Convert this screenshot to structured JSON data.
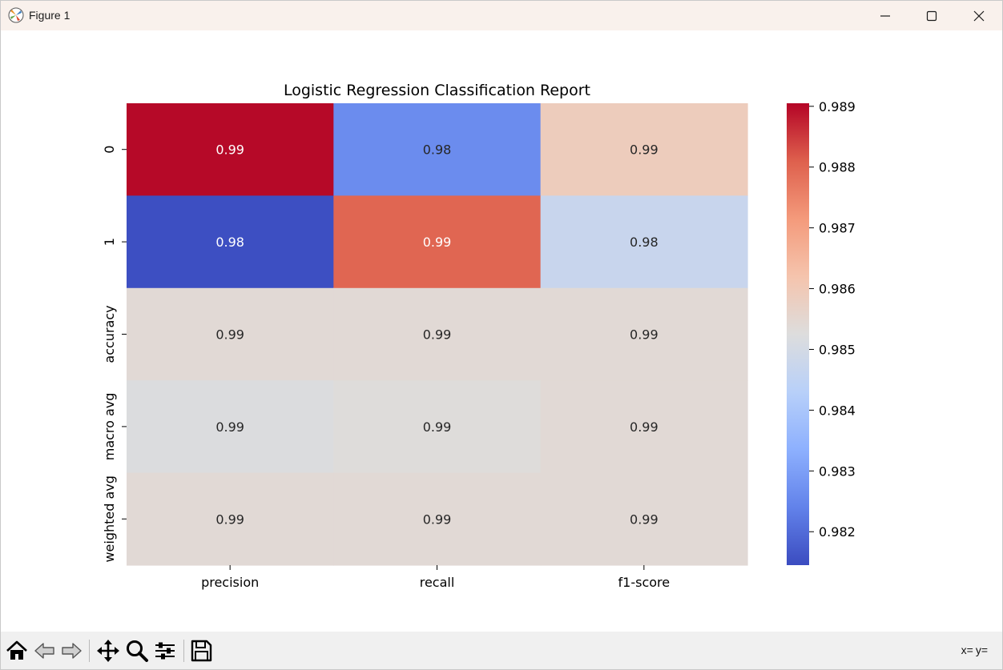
{
  "window": {
    "title": "Figure 1",
    "icons": {
      "app": "matplotlib-icon",
      "minimize": "minimize-icon",
      "maximize": "maximize-icon",
      "close": "close-icon"
    }
  },
  "toolbar": {
    "buttons": [
      {
        "name": "home-icon"
      },
      {
        "name": "back-arrow-icon"
      },
      {
        "name": "forward-arrow-icon"
      },
      {
        "name": "pan-icon"
      },
      {
        "name": "zoom-icon"
      },
      {
        "name": "configure-subplots-icon"
      },
      {
        "name": "save-icon"
      }
    ],
    "coords": {
      "x_label": "x=",
      "y_label": "y="
    }
  },
  "chart_data": {
    "type": "heatmap",
    "title": "Logistic Regression Classification Report",
    "x_categories": [
      "precision",
      "recall",
      "f1-score"
    ],
    "y_categories": [
      "0",
      "1",
      "accuracy",
      "macro avg",
      "weighted avg"
    ],
    "values": [
      [
        0.989,
        0.9826,
        0.9859
      ],
      [
        0.9815,
        0.988,
        0.9847
      ],
      [
        0.9854,
        0.9854,
        0.9854
      ],
      [
        0.9852,
        0.9853,
        0.9854
      ],
      [
        0.9854,
        0.9854,
        0.9854
      ]
    ],
    "cell_labels": [
      [
        "0.99",
        "0.98",
        "0.99"
      ],
      [
        "0.98",
        "0.99",
        "0.98"
      ],
      [
        "0.99",
        "0.99",
        "0.99"
      ],
      [
        "0.99",
        "0.99",
        "0.99"
      ],
      [
        "0.99",
        "0.99",
        "0.99"
      ]
    ],
    "colormap": "coolwarm",
    "colorbar": {
      "range": [
        0.98145,
        0.98905
      ],
      "ticks": [
        0.982,
        0.983,
        0.984,
        0.985,
        0.986,
        0.987,
        0.988,
        0.989
      ],
      "tick_labels": [
        "0.982",
        "0.983",
        "0.984",
        "0.985",
        "0.986",
        "0.987",
        "0.988",
        "0.989"
      ]
    }
  }
}
